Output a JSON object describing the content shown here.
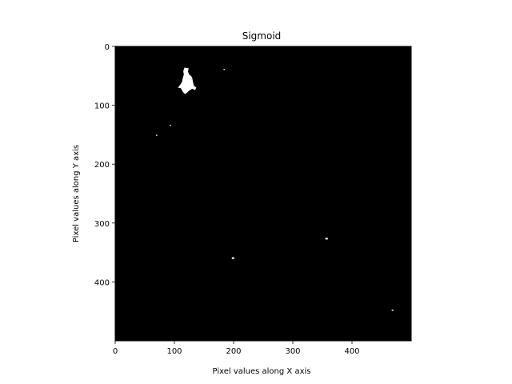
{
  "chart_data": {
    "type": "heatmap",
    "title": "Sigmoid",
    "xlabel": "Pixel values along X axis",
    "ylabel": "Pixel values along Y axis",
    "xlim": [
      0,
      500
    ],
    "ylim": [
      500,
      0
    ],
    "x_ticks": [
      0,
      100,
      200,
      300,
      400
    ],
    "y_ticks": [
      0,
      100,
      200,
      300,
      400
    ],
    "background_color": "#000000",
    "foreground_color": "#ffffff",
    "grid": false,
    "blobs": [
      {
        "name": "main-blob",
        "points": [
          [
            117,
            36
          ],
          [
            124,
            37
          ],
          [
            123,
            43
          ],
          [
            125,
            48
          ],
          [
            128,
            50
          ],
          [
            130,
            53
          ],
          [
            131,
            58
          ],
          [
            132,
            63
          ],
          [
            133,
            67
          ],
          [
            137,
            70
          ],
          [
            135,
            74
          ],
          [
            130,
            72
          ],
          [
            125,
            75
          ],
          [
            121,
            79
          ],
          [
            118,
            81
          ],
          [
            114,
            77
          ],
          [
            111,
            71
          ],
          [
            106,
            70
          ],
          [
            110,
            65
          ],
          [
            113,
            60
          ],
          [
            114,
            54
          ],
          [
            116,
            48
          ],
          [
            115,
            42
          ]
        ]
      },
      {
        "name": "speck-1",
        "points": [
          [
            183,
            38
          ],
          [
            185,
            38
          ],
          [
            185,
            40
          ],
          [
            183,
            40
          ]
        ]
      },
      {
        "name": "speck-2",
        "points": [
          [
            92,
            133
          ],
          [
            94,
            133
          ],
          [
            94,
            135
          ],
          [
            92,
            135
          ]
        ]
      },
      {
        "name": "speck-3",
        "points": [
          [
            69,
            150
          ],
          [
            71,
            150
          ],
          [
            71,
            152
          ],
          [
            69,
            152
          ]
        ]
      },
      {
        "name": "speck-4",
        "points": [
          [
            355,
            325
          ],
          [
            359,
            325
          ],
          [
            359,
            328
          ],
          [
            355,
            328
          ]
        ]
      },
      {
        "name": "speck-5",
        "points": [
          [
            197,
            358
          ],
          [
            201,
            358
          ],
          [
            201,
            361
          ],
          [
            197,
            361
          ]
        ]
      },
      {
        "name": "speck-6",
        "points": [
          [
            467,
            447
          ],
          [
            470,
            447
          ],
          [
            470,
            449
          ],
          [
            467,
            449
          ]
        ]
      }
    ]
  }
}
